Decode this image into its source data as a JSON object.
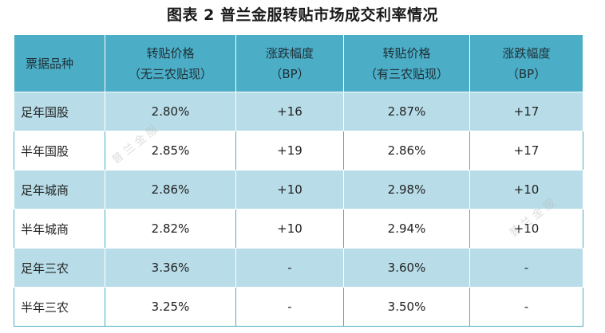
{
  "title": "图表 2  普兰金服转贴市场成交利率情况",
  "table": {
    "headers": [
      {
        "line1": "票据品种",
        "line2": ""
      },
      {
        "line1": "转贴价格",
        "line2": "（无三农贴现）"
      },
      {
        "line1": "涨跌幅度",
        "line2": "（BP）"
      },
      {
        "line1": "转贴价格",
        "line2": "（有三农贴现）"
      },
      {
        "line1": "涨跌幅度",
        "line2": "（BP）"
      }
    ],
    "rows": [
      {
        "name": "足年国股",
        "price_a": "2.80%",
        "change_a": "+16",
        "price_b": "2.87%",
        "change_b": "+17"
      },
      {
        "name": "半年国股",
        "price_a": "2.85%",
        "change_a": "+19",
        "price_b": "2.86%",
        "change_b": "+17"
      },
      {
        "name": "足年城商",
        "price_a": "2.86%",
        "change_a": "+10",
        "price_b": "2.98%",
        "change_b": "+10"
      },
      {
        "name": "半年城商",
        "price_a": "2.82%",
        "change_a": "+10",
        "price_b": "2.94%",
        "change_b": "+10"
      },
      {
        "name": "足年三农",
        "price_a": "3.36%",
        "change_a": "-",
        "price_b": "3.60%",
        "change_b": "-"
      },
      {
        "name": "半年三农",
        "price_a": "3.25%",
        "change_a": "-",
        "price_b": "3.50%",
        "change_b": "-"
      }
    ]
  },
  "watermarks": [
    "普兰金服",
    "普兰金服"
  ]
}
